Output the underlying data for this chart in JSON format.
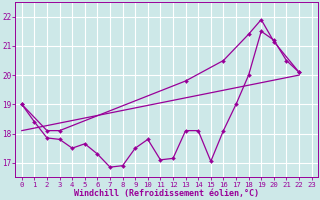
{
  "background_color": "#cde8e8",
  "grid_color": "#b8d8d8",
  "line_color": "#990099",
  "marker": "D",
  "marker_size": 2.0,
  "xlabel": "Windchill (Refroidissement éolien,°C)",
  "xlim": [
    -0.5,
    23.5
  ],
  "ylim": [
    16.5,
    22.5
  ],
  "xticks": [
    0,
    1,
    2,
    3,
    4,
    5,
    6,
    7,
    8,
    9,
    10,
    11,
    12,
    13,
    14,
    15,
    16,
    17,
    18,
    19,
    20,
    21,
    22,
    23
  ],
  "yticks": [
    17,
    18,
    19,
    20,
    21,
    22
  ],
  "line1_x": [
    0,
    1,
    2,
    3,
    4,
    5,
    6,
    7,
    8,
    9,
    10,
    11,
    12,
    13,
    14,
    15,
    16,
    17,
    18,
    19,
    20,
    21,
    22
  ],
  "line1_y": [
    19.0,
    18.4,
    17.85,
    17.8,
    17.5,
    17.65,
    17.3,
    16.85,
    16.9,
    17.5,
    17.8,
    17.1,
    17.15,
    18.1,
    18.1,
    17.05,
    18.1,
    19.0,
    20.0,
    21.5,
    21.2,
    20.5,
    20.1
  ],
  "line2_x": [
    0,
    2,
    3,
    13,
    16,
    18,
    19,
    20,
    22
  ],
  "line2_y": [
    19.0,
    18.1,
    18.1,
    19.8,
    20.5,
    21.4,
    21.9,
    21.15,
    20.1
  ],
  "line3_x": [
    0,
    22
  ],
  "line3_y": [
    18.1,
    20.0
  ]
}
